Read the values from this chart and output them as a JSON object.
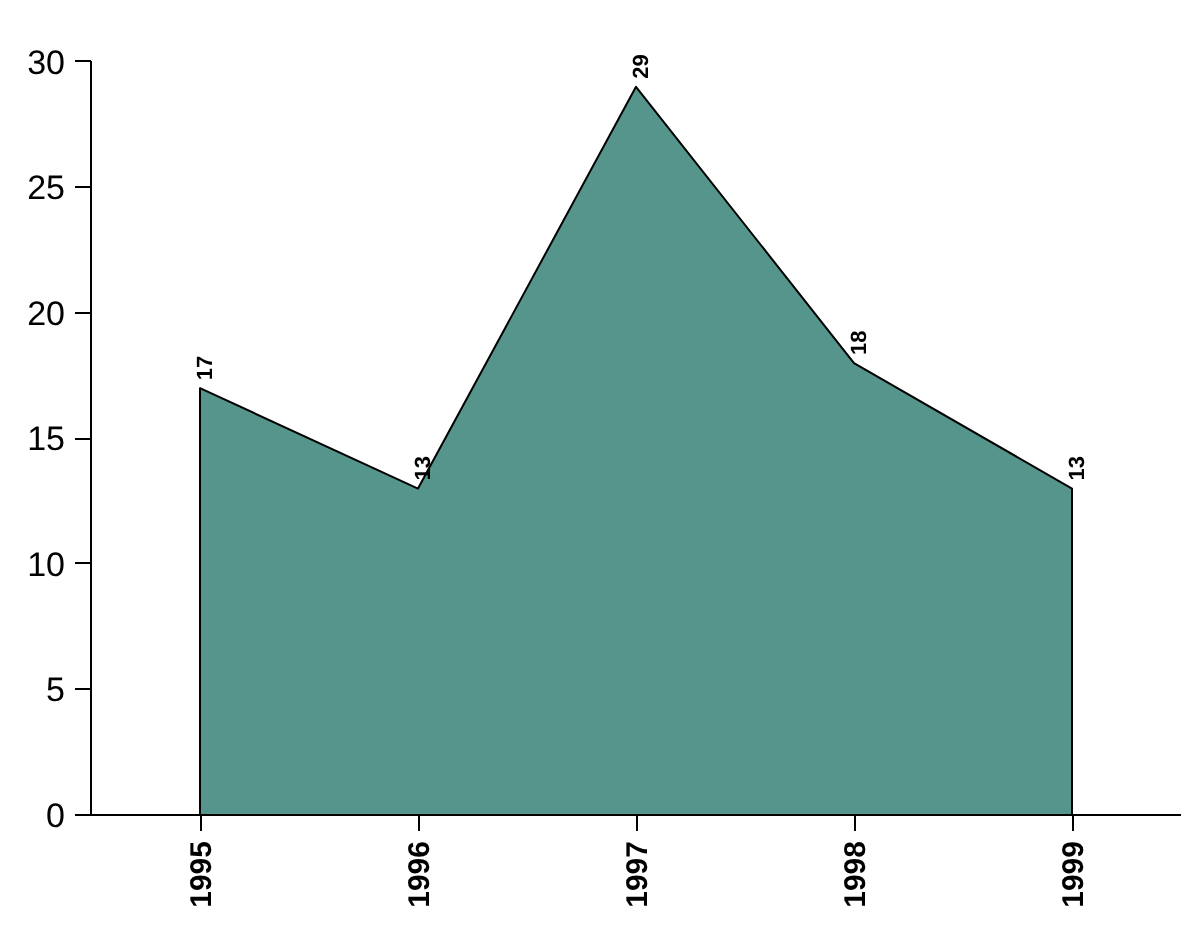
{
  "chart_data": {
    "type": "area",
    "categories": [
      "1995",
      "1996",
      "1997",
      "1998",
      "1999"
    ],
    "values": [
      17,
      13,
      29,
      18,
      13
    ],
    "color": "#56958b",
    "ylim": [
      0,
      30
    ],
    "yticks": [
      0,
      5,
      10,
      15,
      20,
      25,
      30
    ],
    "data_labels": true,
    "grid": false
  }
}
